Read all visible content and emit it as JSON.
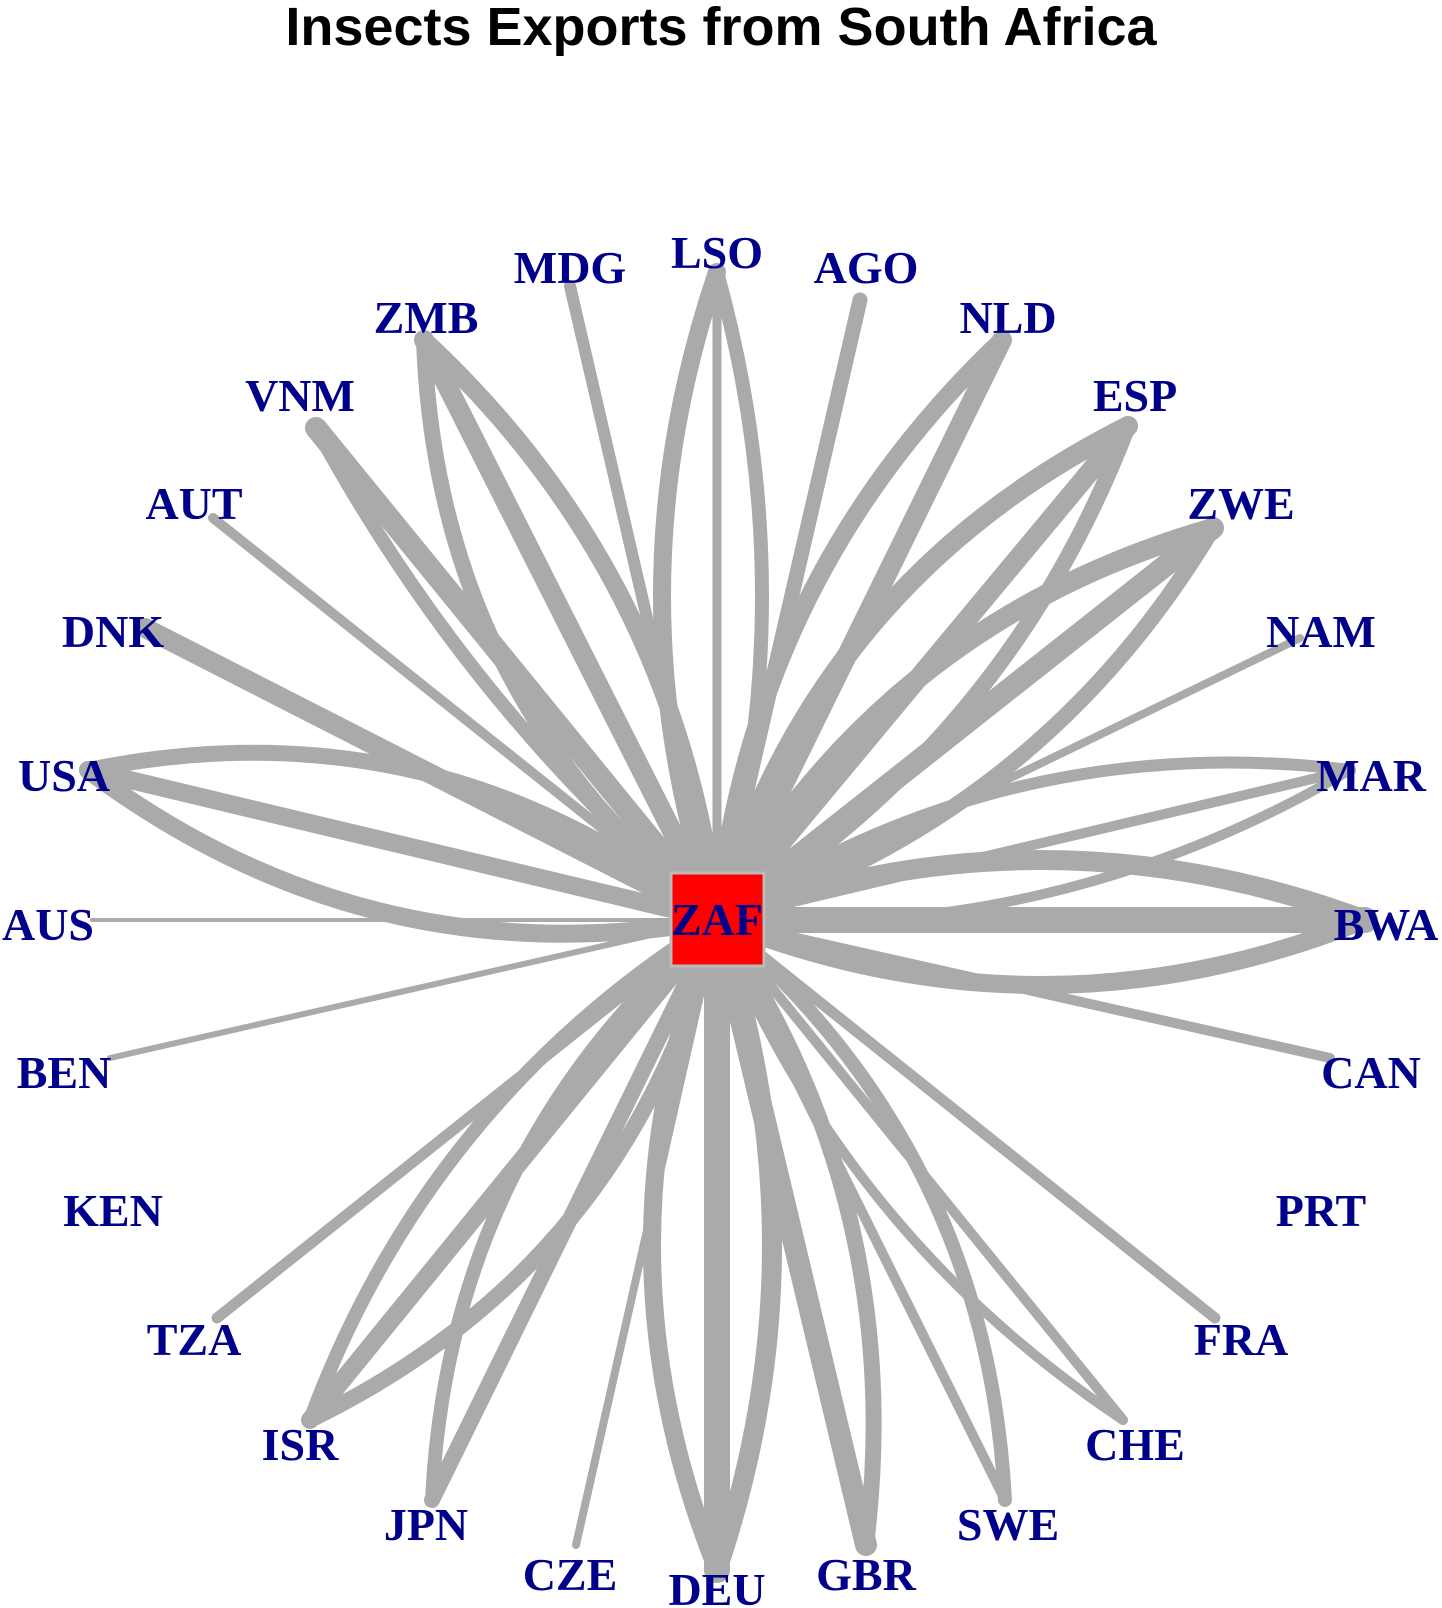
{
  "title": "Insects Exports from South Africa",
  "colors": {
    "edge": "#aaaaaa",
    "label": "#00008b",
    "center_fill": "#ff0000",
    "center_border": "#bbbbbb"
  },
  "center": {
    "code": "ZAF"
  },
  "nodes": [
    {
      "code": "LSO"
    },
    {
      "code": "AGO"
    },
    {
      "code": "NLD"
    },
    {
      "code": "ESP"
    },
    {
      "code": "ZWE"
    },
    {
      "code": "NAM"
    },
    {
      "code": "MAR"
    },
    {
      "code": "BWA"
    },
    {
      "code": "CAN"
    },
    {
      "code": "PRT"
    },
    {
      "code": "FRA"
    },
    {
      "code": "CHE"
    },
    {
      "code": "SWE"
    },
    {
      "code": "GBR"
    },
    {
      "code": "DEU"
    },
    {
      "code": "CZE"
    },
    {
      "code": "JPN"
    },
    {
      "code": "ISR"
    },
    {
      "code": "TZA"
    },
    {
      "code": "KEN"
    },
    {
      "code": "BEN"
    },
    {
      "code": "AUS"
    },
    {
      "code": "USA"
    },
    {
      "code": "DNK"
    },
    {
      "code": "AUT"
    },
    {
      "code": "VNM"
    },
    {
      "code": "ZMB"
    },
    {
      "code": "MDG"
    }
  ]
}
